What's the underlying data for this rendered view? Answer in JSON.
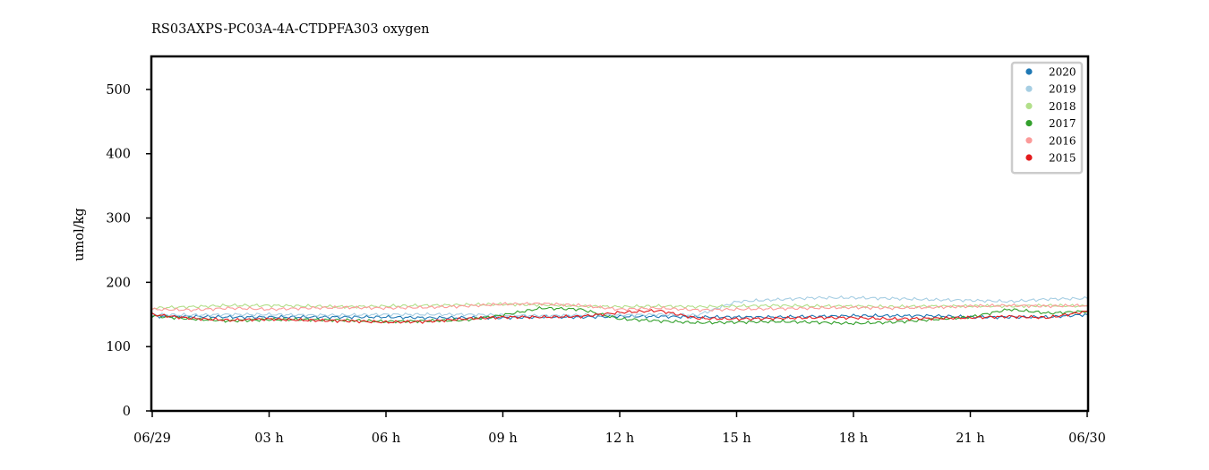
{
  "chart_data": {
    "type": "line",
    "title": "RS03AXPS-PC03A-4A-CTDPFA303 oxygen",
    "xlabel": "",
    "ylabel": "umol/kg",
    "xlim_hours": [
      0,
      24
    ],
    "ylim": [
      0,
      550
    ],
    "x_ticks": [
      {
        "hour": 0,
        "label": "06/29"
      },
      {
        "hour": 3,
        "label": "03 h"
      },
      {
        "hour": 6,
        "label": "06 h"
      },
      {
        "hour": 9,
        "label": "09 h"
      },
      {
        "hour": 12,
        "label": "12 h"
      },
      {
        "hour": 15,
        "label": "15 h"
      },
      {
        "hour": 18,
        "label": "18 h"
      },
      {
        "hour": 21,
        "label": "21 h"
      },
      {
        "hour": 24,
        "label": "06/30"
      }
    ],
    "y_ticks": [
      0,
      100,
      200,
      300,
      400,
      500
    ],
    "grid": false,
    "legend_position": "top-right",
    "x_hours": [
      0,
      1,
      2,
      3,
      4,
      5,
      6,
      7,
      8,
      9,
      10,
      11,
      12,
      13,
      14,
      15,
      16,
      17,
      18,
      19,
      20,
      21,
      22,
      23,
      24
    ],
    "series": [
      {
        "name": "2020",
        "color": "#1f78b4",
        "values": [
          147,
          147,
          146,
          146,
          146,
          146,
          146,
          145,
          145,
          145,
          146,
          146,
          147,
          147,
          146,
          146,
          146,
          147,
          148,
          148,
          148,
          146,
          146,
          146,
          150
        ]
      },
      {
        "name": "2019",
        "color": "#a6cee3",
        "values": [
          150,
          149,
          150,
          150,
          149,
          149,
          150,
          150,
          150,
          149,
          148,
          149,
          149,
          150,
          149,
          170,
          173,
          176,
          176,
          175,
          173,
          172,
          170,
          174,
          175
        ]
      },
      {
        "name": "2018",
        "color": "#b2df8a",
        "values": [
          160,
          162,
          164,
          164,
          163,
          162,
          163,
          164,
          165,
          166,
          165,
          163,
          162,
          163,
          162,
          163,
          164,
          163,
          163,
          162,
          163,
          163,
          163,
          164,
          163
        ]
      },
      {
        "name": "2017",
        "color": "#33a02c",
        "values": [
          148,
          143,
          140,
          142,
          142,
          141,
          139,
          140,
          141,
          149,
          160,
          158,
          143,
          140,
          137,
          138,
          139,
          138,
          136,
          138,
          142,
          146,
          158,
          152,
          155
        ]
      },
      {
        "name": "2016",
        "color": "#fb9a99",
        "values": [
          158,
          157,
          160,
          158,
          160,
          161,
          160,
          161,
          163,
          166,
          167,
          164,
          158,
          160,
          157,
          158,
          159,
          160,
          161,
          160,
          161,
          163,
          164,
          163,
          164
        ]
      },
      {
        "name": "2015",
        "color": "#e31a1c",
        "values": [
          150,
          144,
          141,
          143,
          141,
          140,
          138,
          139,
          143,
          146,
          146,
          147,
          153,
          156,
          144,
          143,
          144,
          145,
          145,
          143,
          144,
          145,
          147,
          145,
          155
        ]
      }
    ]
  }
}
